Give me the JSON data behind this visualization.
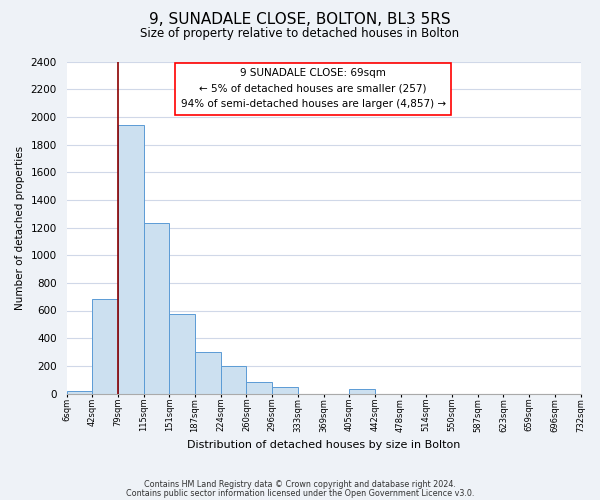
{
  "title": "9, SUNADALE CLOSE, BOLTON, BL3 5RS",
  "subtitle": "Size of property relative to detached houses in Bolton",
  "xlabel": "Distribution of detached houses by size in Bolton",
  "ylabel": "Number of detached properties",
  "bin_labels": [
    "6sqm",
    "42sqm",
    "79sqm",
    "115sqm",
    "151sqm",
    "187sqm",
    "224sqm",
    "260sqm",
    "296sqm",
    "333sqm",
    "369sqm",
    "405sqm",
    "442sqm",
    "478sqm",
    "514sqm",
    "550sqm",
    "587sqm",
    "623sqm",
    "659sqm",
    "696sqm",
    "732sqm"
  ],
  "bar_values": [
    15,
    680,
    1940,
    1230,
    575,
    300,
    200,
    80,
    45,
    0,
    0,
    35,
    0,
    0,
    0,
    0,
    0,
    0,
    0,
    0
  ],
  "bar_color": "#cce0f0",
  "bar_edge_color": "#5b9bd5",
  "annotation_box_text": "9 SUNADALE CLOSE: 69sqm\n← 5% of detached houses are smaller (257)\n94% of semi-detached houses are larger (4,857) →",
  "red_line_bin_index": 2,
  "ylim": [
    0,
    2400
  ],
  "yticks": [
    0,
    200,
    400,
    600,
    800,
    1000,
    1200,
    1400,
    1600,
    1800,
    2000,
    2200,
    2400
  ],
  "footnote1": "Contains HM Land Registry data © Crown copyright and database right 2024.",
  "footnote2": "Contains public sector information licensed under the Open Government Licence v3.0.",
  "bg_color": "#eef2f7",
  "plot_bg_color": "#ffffff",
  "grid_color": "#d0d8e8"
}
